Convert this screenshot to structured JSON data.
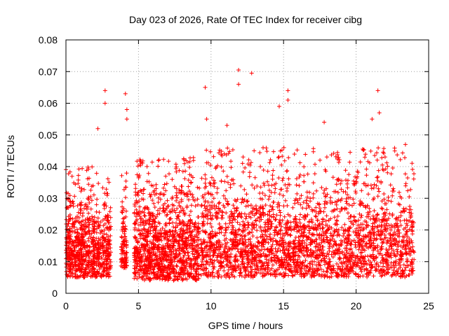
{
  "chart_data": {
    "type": "scatter",
    "title": "Day 023 of 2026, Rate Of TEC Index for receiver cibg",
    "xlabel": "GPS time / hours",
    "ylabel": "ROTI / TECUs",
    "xlim": [
      0,
      25
    ],
    "ylim": [
      0,
      0.08
    ],
    "x_ticks": [
      "0",
      "5",
      "10",
      "15",
      "20",
      "25"
    ],
    "y_ticks": [
      "0",
      "0.01",
      "0.02",
      "0.03",
      "0.04",
      "0.05",
      "0.06",
      "0.07",
      "0.08"
    ],
    "grid": true,
    "legend": "none",
    "marker": "+",
    "color": "#ff0000",
    "coverage_segments": [
      {
        "x_start": 0.0,
        "x_end": 3.1,
        "y_min": 0.005,
        "y_max": 0.032
      },
      {
        "x_start": 3.8,
        "x_end": 4.2,
        "y_min": 0.008,
        "y_max": 0.03
      },
      {
        "x_start": 4.7,
        "x_end": 9.2,
        "y_min": 0.004,
        "y_max": 0.035
      },
      {
        "x_start": 9.3,
        "x_end": 24.0,
        "y_min": 0.005,
        "y_max": 0.038
      }
    ],
    "outliers": [
      {
        "x": 2.2,
        "y": 0.052
      },
      {
        "x": 2.7,
        "y": 0.064
      },
      {
        "x": 2.7,
        "y": 0.06
      },
      {
        "x": 4.1,
        "y": 0.063
      },
      {
        "x": 4.2,
        "y": 0.058
      },
      {
        "x": 4.2,
        "y": 0.055
      },
      {
        "x": 9.6,
        "y": 0.065
      },
      {
        "x": 9.7,
        "y": 0.055
      },
      {
        "x": 11.1,
        "y": 0.053
      },
      {
        "x": 11.9,
        "y": 0.0705
      },
      {
        "x": 11.9,
        "y": 0.066
      },
      {
        "x": 12.8,
        "y": 0.0695
      },
      {
        "x": 14.7,
        "y": 0.059
      },
      {
        "x": 15.3,
        "y": 0.064
      },
      {
        "x": 15.3,
        "y": 0.061
      },
      {
        "x": 17.8,
        "y": 0.054
      },
      {
        "x": 21.5,
        "y": 0.064
      },
      {
        "x": 21.6,
        "y": 0.057
      },
      {
        "x": 21.1,
        "y": 0.055
      },
      {
        "x": 23.4,
        "y": 0.047
      }
    ]
  }
}
